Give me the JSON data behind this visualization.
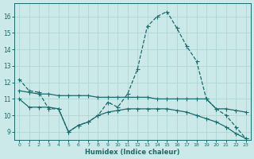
{
  "xlabel": "Humidex (Indice chaleur)",
  "xlim": [
    -0.5,
    23.5
  ],
  "ylim": [
    8.5,
    16.8
  ],
  "yticks": [
    9,
    10,
    11,
    12,
    13,
    14,
    15,
    16
  ],
  "xticks": [
    0,
    1,
    2,
    3,
    4,
    5,
    6,
    7,
    8,
    9,
    10,
    11,
    12,
    13,
    14,
    15,
    16,
    17,
    18,
    19,
    20,
    21,
    22,
    23
  ],
  "bg_color": "#cce9e9",
  "grid_color": "#b0d4d4",
  "line_color": "#1a6b6b",
  "line1_x": [
    0,
    1,
    2,
    3,
    4,
    5,
    6,
    7,
    8,
    9,
    10,
    11,
    12,
    13,
    14,
    15,
    16,
    17,
    18,
    19,
    20,
    21,
    22,
    23
  ],
  "line1_y": [
    12.2,
    11.5,
    11.4,
    10.4,
    10.4,
    9.0,
    9.4,
    9.6,
    10.0,
    10.8,
    10.5,
    11.3,
    12.8,
    15.4,
    16.0,
    16.3,
    15.3,
    14.2,
    13.3,
    11.0,
    10.4,
    10.0,
    9.3,
    8.6
  ],
  "line2_x": [
    0,
    1,
    2,
    3,
    4,
    5,
    6,
    7,
    8,
    9,
    10,
    11,
    12,
    13,
    14,
    15,
    16,
    17,
    18,
    19,
    20,
    21,
    22,
    23
  ],
  "line2_y": [
    11.5,
    11.4,
    11.3,
    11.3,
    11.2,
    11.2,
    11.2,
    11.2,
    11.1,
    11.1,
    11.1,
    11.1,
    11.1,
    11.1,
    11.0,
    11.0,
    11.0,
    11.0,
    11.0,
    11.0,
    10.4,
    10.4,
    10.3,
    10.2
  ],
  "line3_x": [
    0,
    1,
    2,
    3,
    4,
    5,
    6,
    7,
    8,
    9,
    10,
    11,
    12,
    13,
    14,
    15,
    16,
    17,
    18,
    19,
    20,
    21,
    22,
    23
  ],
  "line3_y": [
    11.0,
    10.5,
    10.5,
    10.5,
    10.4,
    9.0,
    9.4,
    9.6,
    10.0,
    10.2,
    10.3,
    10.4,
    10.4,
    10.4,
    10.4,
    10.4,
    10.3,
    10.2,
    10.0,
    9.8,
    9.6,
    9.3,
    8.9,
    8.6
  ]
}
